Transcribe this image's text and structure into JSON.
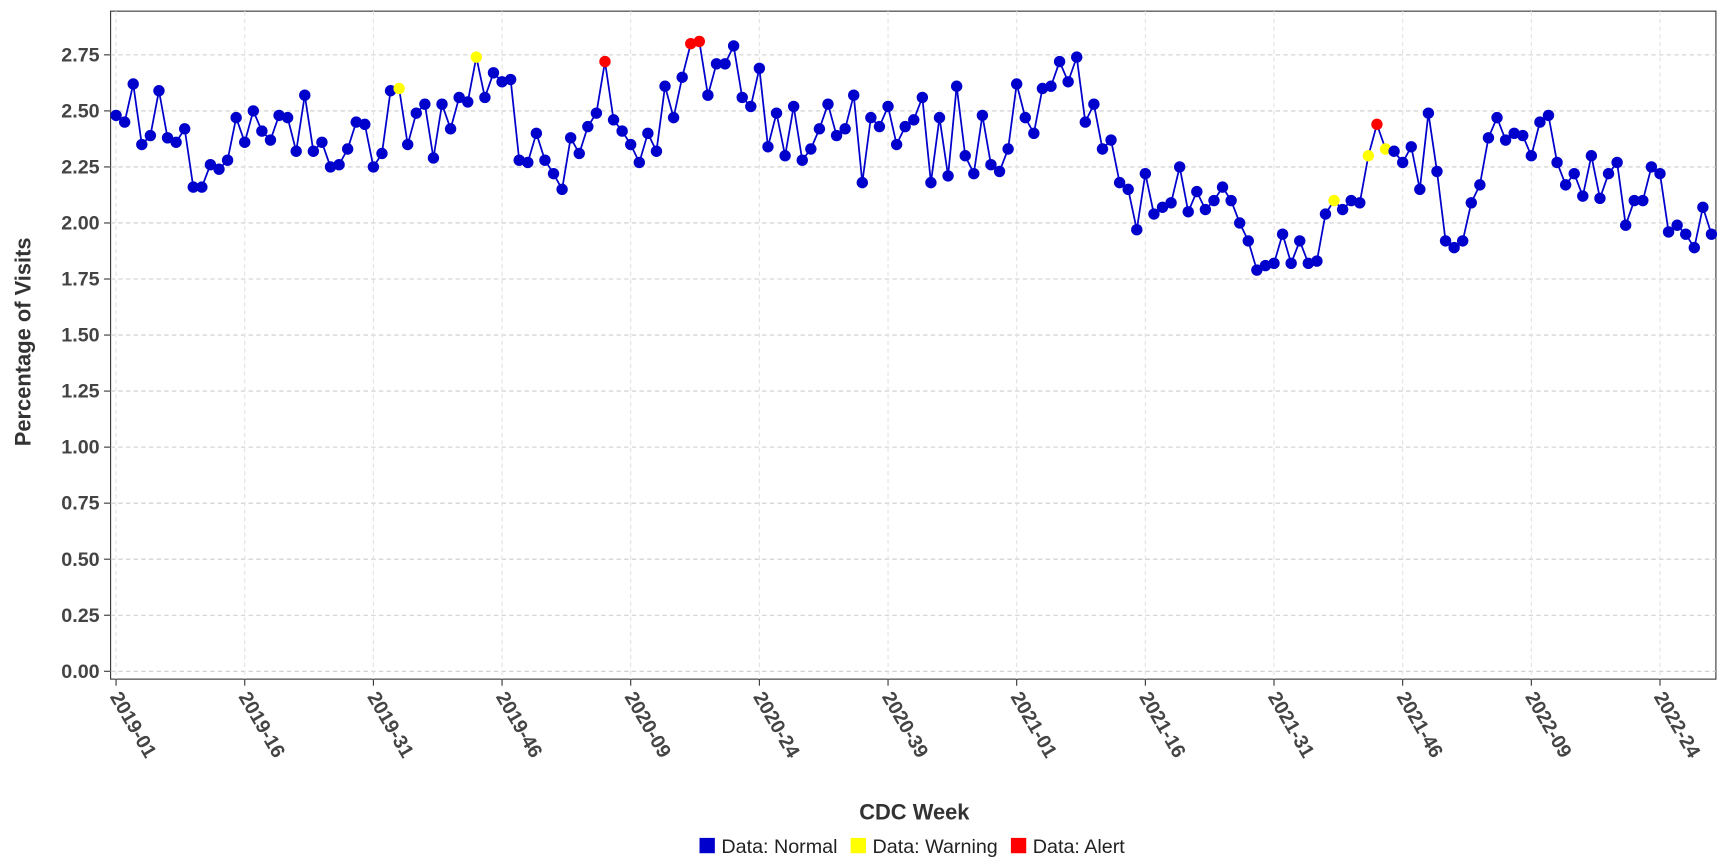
{
  "chart_data": {
    "type": "line",
    "x_label": "CDC Week",
    "y_label": "Percentage of Visits",
    "categories": [
      "2019-01",
      null,
      null,
      null,
      null,
      null,
      null,
      null,
      null,
      null,
      null,
      null,
      null,
      null,
      null,
      "2019-16",
      null,
      null,
      null,
      null,
      null,
      null,
      null,
      null,
      null,
      null,
      null,
      null,
      null,
      null,
      "2019-31",
      null,
      null,
      null,
      null,
      null,
      null,
      null,
      null,
      null,
      null,
      null,
      null,
      null,
      null,
      "2019-46",
      null,
      null,
      null,
      null,
      null,
      null,
      null,
      null,
      null,
      null,
      null,
      null,
      null,
      null,
      "2020-09",
      null,
      null,
      null,
      null,
      null,
      null,
      null,
      null,
      null,
      null,
      null,
      null,
      null,
      null,
      "2020-24",
      null,
      null,
      null,
      null,
      null,
      null,
      null,
      null,
      null,
      null,
      null,
      null,
      null,
      null,
      "2020-39",
      null,
      null,
      null,
      null,
      null,
      null,
      null,
      null,
      null,
      null,
      null,
      null,
      null,
      null,
      "2021-01",
      null,
      null,
      null,
      null,
      null,
      null,
      null,
      null,
      null,
      null,
      null,
      null,
      null,
      null,
      "2021-16",
      null,
      null,
      null,
      null,
      null,
      null,
      null,
      null,
      null,
      null,
      null,
      null,
      null,
      null,
      "2021-31",
      null,
      null,
      null,
      null,
      null,
      null,
      null,
      null,
      null,
      null,
      null,
      null,
      null,
      null,
      "2021-46",
      null,
      null,
      null,
      null,
      null,
      null,
      null,
      null,
      null,
      null,
      null,
      null,
      null,
      null,
      "2022-09",
      null,
      null,
      null,
      null,
      null,
      null,
      null,
      null,
      null,
      null,
      null,
      null,
      null,
      null,
      "2022-24",
      null,
      null,
      null,
      null,
      null,
      null
    ],
    "series": [
      {
        "name": "Data: Normal",
        "color": "#0000cc",
        "values": [
          2.48,
          2.45,
          2.62,
          2.35,
          2.39,
          2.59,
          2.38,
          2.36,
          2.42,
          2.16,
          2.16,
          2.26,
          2.24,
          2.28,
          2.47,
          2.36,
          2.5,
          2.41,
          2.37,
          2.48,
          2.47,
          2.32,
          2.57,
          2.32,
          2.36,
          2.25,
          2.26,
          2.33,
          2.45,
          2.44,
          2.25,
          2.31,
          2.59,
          null,
          2.35,
          2.49,
          2.53,
          2.29,
          2.53,
          2.42,
          2.56,
          2.54,
          null,
          2.56,
          2.67,
          2.63,
          2.64,
          2.28,
          2.27,
          2.4,
          2.28,
          2.22,
          2.15,
          2.38,
          2.31,
          2.43,
          2.49,
          null,
          2.46,
          2.41,
          2.35,
          2.27,
          2.4,
          2.32,
          2.61,
          2.47,
          2.65,
          null,
          null,
          2.57,
          2.71,
          2.71,
          2.79,
          2.56,
          2.52,
          2.69,
          2.34,
          2.49,
          2.3,
          2.52,
          2.28,
          2.33,
          2.42,
          2.53,
          2.39,
          2.42,
          2.57,
          2.18,
          2.47,
          2.43,
          2.52,
          2.35,
          2.43,
          2.46,
          2.56,
          2.18,
          2.47,
          2.21,
          2.61,
          2.3,
          2.22,
          2.48,
          2.26,
          2.23,
          2.33,
          2.62,
          2.47,
          2.4,
          2.6,
          2.61,
          2.72,
          2.63,
          2.74,
          2.45,
          2.53,
          2.33,
          2.37,
          2.18,
          2.15,
          1.97,
          2.22,
          2.04,
          2.07,
          2.09,
          2.25,
          2.05,
          2.14,
          2.06,
          2.1,
          2.16,
          2.1,
          2.0,
          1.92,
          1.79,
          1.81,
          1.82,
          1.95,
          1.82,
          1.92,
          1.82,
          1.83,
          2.04,
          null,
          2.06,
          2.1,
          2.09,
          null,
          null,
          null,
          2.32,
          2.27,
          2.34,
          2.15,
          2.49,
          2.23,
          1.92,
          1.89,
          1.92,
          2.09,
          2.17,
          2.38,
          2.47,
          2.37,
          2.4,
          2.39,
          2.3,
          2.45,
          2.48,
          2.27,
          2.17,
          2.22,
          2.12,
          2.3,
          2.11,
          2.22,
          2.27,
          1.99,
          2.1,
          2.1,
          2.25,
          2.22,
          1.96,
          1.99,
          1.95,
          1.89,
          2.07,
          1.95
        ]
      },
      {
        "name": "Data: Warning",
        "color": "#ffff00",
        "values": [
          null,
          null,
          null,
          null,
          null,
          null,
          null,
          null,
          null,
          null,
          null,
          null,
          null,
          null,
          null,
          null,
          null,
          null,
          null,
          null,
          null,
          null,
          null,
          null,
          null,
          null,
          null,
          null,
          null,
          null,
          null,
          null,
          null,
          2.6,
          null,
          null,
          null,
          null,
          null,
          null,
          null,
          null,
          2.74,
          null,
          null,
          null,
          null,
          null,
          null,
          null,
          null,
          null,
          null,
          null,
          null,
          null,
          null,
          null,
          null,
          null,
          null,
          null,
          null,
          null,
          null,
          null,
          null,
          null,
          null,
          null,
          null,
          null,
          null,
          null,
          null,
          null,
          null,
          null,
          null,
          null,
          null,
          null,
          null,
          null,
          null,
          null,
          null,
          null,
          null,
          null,
          null,
          null,
          null,
          null,
          null,
          null,
          null,
          null,
          null,
          null,
          null,
          null,
          null,
          null,
          null,
          null,
          null,
          null,
          null,
          null,
          null,
          null,
          null,
          null,
          null,
          null,
          null,
          null,
          null,
          null,
          null,
          null,
          null,
          null,
          null,
          null,
          null,
          null,
          null,
          null,
          null,
          null,
          null,
          null,
          null,
          null,
          null,
          null,
          null,
          null,
          null,
          null,
          2.1,
          null,
          null,
          null,
          2.3,
          null,
          2.33,
          null,
          null,
          null,
          null,
          null,
          null,
          null,
          null,
          null,
          null,
          null,
          null,
          null,
          null,
          null,
          null,
          null,
          null,
          null,
          null,
          null,
          null,
          null,
          null,
          null,
          null,
          null,
          null,
          null,
          null,
          null,
          null,
          null,
          null,
          null,
          null,
          null,
          null
        ]
      },
      {
        "name": "Data: Alert",
        "color": "#ff0000",
        "values": [
          null,
          null,
          null,
          null,
          null,
          null,
          null,
          null,
          null,
          null,
          null,
          null,
          null,
          null,
          null,
          null,
          null,
          null,
          null,
          null,
          null,
          null,
          null,
          null,
          null,
          null,
          null,
          null,
          null,
          null,
          null,
          null,
          null,
          null,
          null,
          null,
          null,
          null,
          null,
          null,
          null,
          null,
          null,
          null,
          null,
          null,
          null,
          null,
          null,
          null,
          null,
          null,
          null,
          null,
          null,
          null,
          null,
          2.72,
          null,
          null,
          null,
          null,
          null,
          null,
          null,
          null,
          null,
          2.8,
          2.81,
          null,
          null,
          null,
          null,
          null,
          null,
          null,
          null,
          null,
          null,
          null,
          null,
          null,
          null,
          null,
          null,
          null,
          null,
          null,
          null,
          null,
          null,
          null,
          null,
          null,
          null,
          null,
          null,
          null,
          null,
          null,
          null,
          null,
          null,
          null,
          null,
          null,
          null,
          null,
          null,
          null,
          null,
          null,
          null,
          null,
          null,
          null,
          null,
          null,
          null,
          null,
          null,
          null,
          null,
          null,
          null,
          null,
          null,
          null,
          null,
          null,
          null,
          null,
          null,
          null,
          null,
          null,
          null,
          null,
          null,
          null,
          null,
          null,
          null,
          null,
          null,
          null,
          null,
          2.44,
          null,
          null,
          null,
          null,
          null,
          null,
          null,
          null,
          null,
          null,
          null,
          null,
          null,
          null,
          null,
          null,
          null,
          null,
          null,
          null,
          null,
          null,
          null,
          null,
          null,
          null,
          null,
          null,
          null,
          null,
          null,
          null,
          null,
          null,
          null,
          null,
          null,
          null,
          null
        ]
      }
    ],
    "line_color": "#0000cc",
    "ylim": [
      -0.035,
      2.945
    ],
    "yticks": [
      {
        "value": 0,
        "label": "0.00"
      },
      {
        "value": 0.25,
        "label": "0.25"
      },
      {
        "value": 0.5,
        "label": "0.50"
      },
      {
        "value": 0.75,
        "label": "0.75"
      },
      {
        "value": 1,
        "label": "1.00"
      },
      {
        "value": 1.25,
        "label": "1.25"
      },
      {
        "value": 1.5,
        "label": "1.50"
      },
      {
        "value": 1.75,
        "label": "1.75"
      },
      {
        "value": 2,
        "label": "2.00"
      },
      {
        "value": 2.25,
        "label": "2.25"
      },
      {
        "value": 2.5,
        "label": "2.50"
      },
      {
        "value": 2.75,
        "label": "2.75"
      }
    ],
    "grid": true,
    "legend_position": "bottom"
  }
}
